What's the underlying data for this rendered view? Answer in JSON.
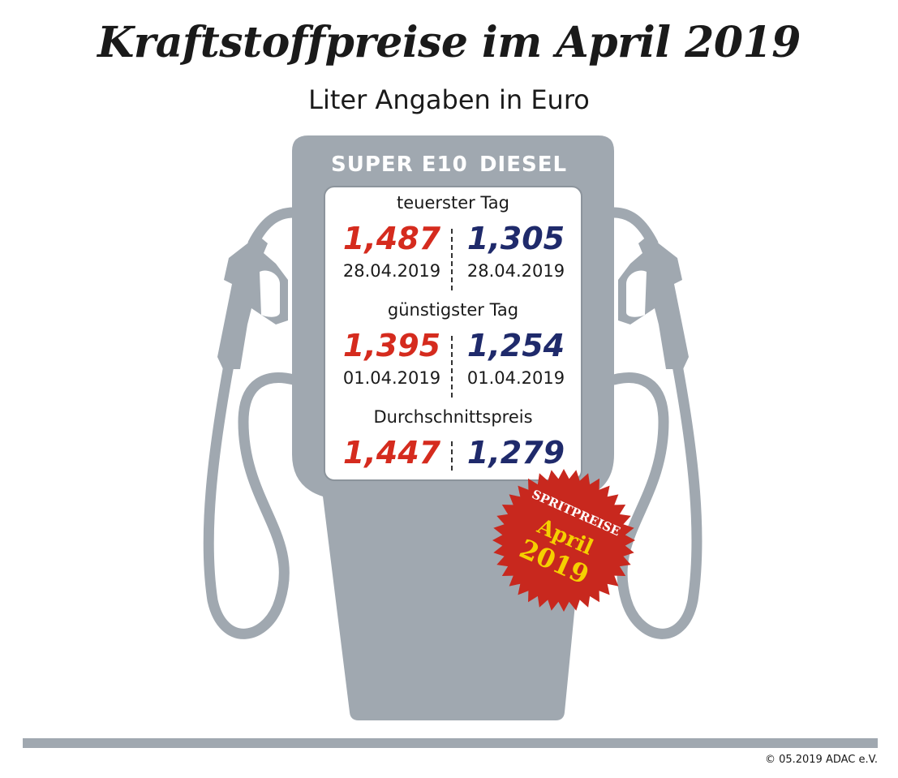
{
  "title": "Kraftstoffpreise im April 2019",
  "subtitle": "Liter Angaben in Euro",
  "columns": [
    "SUPER E10",
    "DIESEL"
  ],
  "rows": [
    {
      "label": "teuerster Tag",
      "super_e10": {
        "price": "1,487",
        "date": "28.04.2019"
      },
      "diesel": {
        "price": "1,305",
        "date": "28.04.2019"
      }
    },
    {
      "label": "günstigster Tag",
      "super_e10": {
        "price": "1,395",
        "date": "01.04.2019"
      },
      "diesel": {
        "price": "1,254",
        "date": "01.04.2019"
      }
    },
    {
      "label": "Durchschnittspreis",
      "super_e10": {
        "price": "1,447"
      },
      "diesel": {
        "price": "1,279"
      }
    }
  ],
  "badge": {
    "line1": "SPRITPREISE",
    "line2": "April",
    "line3": "2019"
  },
  "copyright": "© 05.2019  ADAC e.V.",
  "colors": {
    "pump": "#a0a8b0",
    "super_e10": "#d52b1e",
    "diesel": "#1f2a6b",
    "badge": "#c8281e",
    "badge_text": "#f5d000"
  }
}
